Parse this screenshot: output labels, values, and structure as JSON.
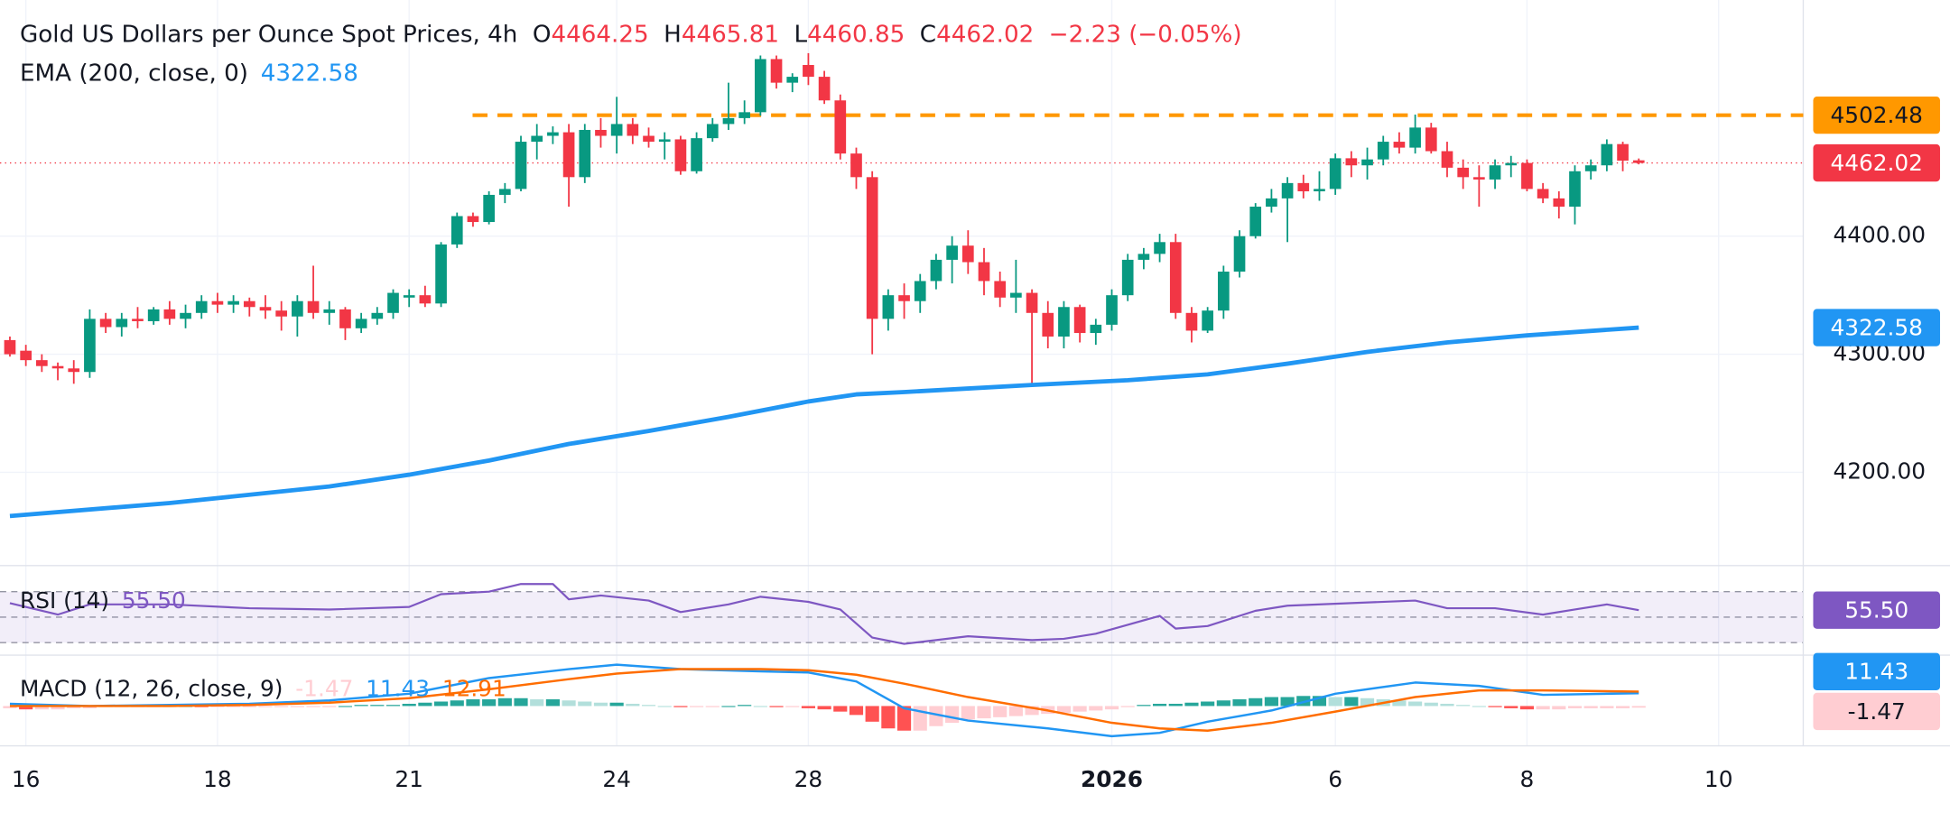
{
  "chart_data": {
    "type": "candlestick",
    "title": "Gold US Dollars per Ounce Spot Prices, 4h",
    "ohlc_letters": [
      "O",
      "H",
      "L",
      "C"
    ],
    "change": {
      "value": -2.23,
      "label": "−2.23"
    },
    "change_pct": {
      "value": -0.05,
      "label": "(−0.05%)"
    },
    "up_color": "#089981",
    "down_color": "#f23645",
    "xlim": [
      -0.62,
      112.3
    ],
    "xticks": [
      {
        "value": 1,
        "label": "16"
      },
      {
        "value": 13,
        "label": "18"
      },
      {
        "value": 25,
        "label": "21"
      },
      {
        "value": 38,
        "label": "24"
      },
      {
        "value": 50,
        "label": "28"
      },
      {
        "value": 69,
        "label": "2026"
      },
      {
        "value": 83,
        "label": "6"
      },
      {
        "value": 95,
        "label": "8"
      },
      {
        "value": 107,
        "label": "10"
      }
    ],
    "ylim": [
      4121,
      4600
    ],
    "yticks": [
      {
        "value": 4200,
        "label": "4200.00"
      },
      {
        "value": 4300,
        "label": "4300.00"
      },
      {
        "value": 4400,
        "label": "4400.00"
      }
    ],
    "grid": true,
    "resistance": {
      "level": 4502.48,
      "color": "#ff9800"
    },
    "ohlc": [
      [
        4312,
        4315,
        4298,
        4300
      ],
      [
        4303,
        4308,
        4290,
        4295
      ],
      [
        4295,
        4300,
        4285,
        4290
      ],
      [
        4290,
        4293,
        4278,
        4288
      ],
      [
        4288,
        4295,
        4275,
        4285
      ],
      [
        4285,
        4338,
        4280,
        4330
      ],
      [
        4330,
        4335,
        4318,
        4323
      ],
      [
        4323,
        4335,
        4315,
        4330
      ],
      [
        4330,
        4340,
        4322,
        4328
      ],
      [
        4328,
        4340,
        4325,
        4338
      ],
      [
        4338,
        4345,
        4325,
        4330
      ],
      [
        4330,
        4342,
        4322,
        4335
      ],
      [
        4335,
        4350,
        4330,
        4345
      ],
      [
        4345,
        4352,
        4335,
        4342
      ],
      [
        4342,
        4350,
        4335,
        4345
      ],
      [
        4345,
        4348,
        4332,
        4340
      ],
      [
        4340,
        4350,
        4330,
        4337
      ],
      [
        4337,
        4345,
        4320,
        4332
      ],
      [
        4332,
        4350,
        4315,
        4345
      ],
      [
        4345,
        4375,
        4330,
        4335
      ],
      [
        4335,
        4345,
        4325,
        4338
      ],
      [
        4338,
        4340,
        4312,
        4322
      ],
      [
        4322,
        4335,
        4318,
        4330
      ],
      [
        4330,
        4340,
        4325,
        4335
      ],
      [
        4335,
        4355,
        4330,
        4352
      ],
      [
        4348,
        4355,
        4340,
        4350
      ],
      [
        4350,
        4358,
        4340,
        4343
      ],
      [
        4343,
        4395,
        4340,
        4393
      ],
      [
        4393,
        4420,
        4390,
        4417
      ],
      [
        4417,
        4420,
        4408,
        4412
      ],
      [
        4412,
        4438,
        4410,
        4435
      ],
      [
        4435,
        4445,
        4428,
        4440
      ],
      [
        4440,
        4485,
        4438,
        4480
      ],
      [
        4480,
        4495,
        4465,
        4485
      ],
      [
        4485,
        4493,
        4478,
        4488
      ],
      [
        4488,
        4495,
        4425,
        4450
      ],
      [
        4450,
        4495,
        4445,
        4490
      ],
      [
        4490,
        4500,
        4475,
        4485
      ],
      [
        4485,
        4518,
        4470,
        4495
      ],
      [
        4495,
        4500,
        4478,
        4485
      ],
      [
        4485,
        4492,
        4475,
        4480
      ],
      [
        4480,
        4488,
        4465,
        4482
      ],
      [
        4482,
        4485,
        4452,
        4455
      ],
      [
        4455,
        4488,
        4453,
        4483
      ],
      [
        4483,
        4500,
        4480,
        4495
      ],
      [
        4495,
        4530,
        4490,
        4500
      ],
      [
        4500,
        4515,
        4495,
        4505
      ],
      [
        4505,
        4553,
        4502,
        4550
      ],
      [
        4550,
        4553,
        4525,
        4530
      ],
      [
        4530,
        4538,
        4522,
        4535
      ],
      [
        4545,
        4555,
        4528,
        4535
      ],
      [
        4535,
        4540,
        4512,
        4515
      ],
      [
        4515,
        4520,
        4465,
        4470
      ],
      [
        4470,
        4475,
        4440,
        4450
      ],
      [
        4450,
        4455,
        4300,
        4330
      ],
      [
        4330,
        4355,
        4320,
        4350
      ],
      [
        4350,
        4360,
        4330,
        4345
      ],
      [
        4345,
        4368,
        4335,
        4362
      ],
      [
        4362,
        4385,
        4355,
        4380
      ],
      [
        4380,
        4400,
        4360,
        4392
      ],
      [
        4392,
        4405,
        4368,
        4378
      ],
      [
        4378,
        4390,
        4350,
        4362
      ],
      [
        4362,
        4370,
        4340,
        4348
      ],
      [
        4348,
        4380,
        4335,
        4352
      ],
      [
        4352,
        4355,
        4275,
        4335
      ],
      [
        4335,
        4345,
        4305,
        4315
      ],
      [
        4315,
        4345,
        4305,
        4340
      ],
      [
        4340,
        4342,
        4310,
        4318
      ],
      [
        4318,
        4330,
        4308,
        4325
      ],
      [
        4325,
        4355,
        4320,
        4350
      ],
      [
        4350,
        4385,
        4345,
        4380
      ],
      [
        4380,
        4390,
        4372,
        4385
      ],
      [
        4385,
        4402,
        4378,
        4395
      ],
      [
        4395,
        4402,
        4330,
        4335
      ],
      [
        4335,
        4340,
        4310,
        4320
      ],
      [
        4320,
        4340,
        4318,
        4337
      ],
      [
        4337,
        4375,
        4330,
        4370
      ],
      [
        4370,
        4405,
        4365,
        4400
      ],
      [
        4400,
        4428,
        4398,
        4425
      ],
      [
        4425,
        4440,
        4420,
        4432
      ],
      [
        4432,
        4450,
        4395,
        4445
      ],
      [
        4445,
        4452,
        4432,
        4438
      ],
      [
        4438,
        4455,
        4430,
        4440
      ],
      [
        4440,
        4470,
        4435,
        4466
      ],
      [
        4466,
        4472,
        4450,
        4460
      ],
      [
        4460,
        4475,
        4448,
        4465
      ],
      [
        4465,
        4485,
        4460,
        4480
      ],
      [
        4480,
        4488,
        4470,
        4475
      ],
      [
        4475,
        4503,
        4470,
        4492
      ],
      [
        4492,
        4496,
        4470,
        4472
      ],
      [
        4472,
        4480,
        4450,
        4458
      ],
      [
        4458,
        4465,
        4440,
        4450
      ],
      [
        4450,
        4460,
        4425,
        4448
      ],
      [
        4448,
        4465,
        4440,
        4460
      ],
      [
        4460,
        4468,
        4450,
        4462
      ],
      [
        4462,
        4465,
        4438,
        4440
      ],
      [
        4440,
        4445,
        4428,
        4432
      ],
      [
        4432,
        4438,
        4415,
        4425
      ],
      [
        4425,
        4460,
        4410,
        4455
      ],
      [
        4455,
        4465,
        4448,
        4460
      ],
      [
        4460,
        4482,
        4455,
        4478
      ],
      [
        4478,
        4480,
        4455,
        4464
      ],
      [
        4464.25,
        4465.81,
        4460.85,
        4462.02
      ]
    ],
    "ema": {
      "name": "EMA (200, close, 0)",
      "color": "#2196f3",
      "x": [
        0,
        10,
        20,
        25,
        30,
        35,
        40,
        45,
        50,
        53,
        56,
        60,
        64,
        70,
        75,
        80,
        85,
        90,
        95,
        102
      ],
      "values": [
        4163,
        4174,
        4188,
        4198,
        4210,
        4224,
        4235,
        4247,
        4260,
        4266,
        4268,
        4271,
        4274,
        4278,
        4283,
        4292,
        4302,
        4310,
        4316,
        4322.58
      ]
    },
    "rsi": {
      "name": "RSI (14)",
      "color": "#7e57c2",
      "ylim": [
        20.2,
        88.5
      ],
      "levels": [
        70,
        50,
        30
      ],
      "readout": {
        "value": 55.5,
        "label": "55.50"
      },
      "x": [
        0,
        3,
        5,
        10,
        15,
        20,
        25,
        27,
        30,
        32,
        34,
        35,
        37,
        40,
        42,
        45,
        47,
        50,
        52,
        54,
        56,
        60,
        64,
        66,
        68,
        70,
        72,
        73,
        75,
        78,
        80,
        84,
        88,
        90,
        93,
        96,
        98,
        100,
        102
      ],
      "values": [
        61,
        52,
        60,
        60,
        57,
        56,
        58,
        68,
        70,
        76,
        76,
        64,
        67,
        63,
        54,
        60,
        66,
        62,
        56,
        34,
        29,
        35,
        32,
        33,
        37,
        44,
        51,
        41,
        43,
        55,
        59,
        61,
        63,
        57,
        57,
        52,
        56,
        60,
        55.5
      ]
    },
    "macd": {
      "name": "MACD (12, 26, close, 9)",
      "ylim": [
        -35.6,
        42.2
      ],
      "hist_colors": [
        "#26a69a",
        "#b2dfdb",
        "#ff5252",
        "#ffcdd2"
      ],
      "histogram": [
        -2,
        -3,
        -3,
        -3,
        -2,
        -2,
        -1,
        -1,
        -1,
        -1,
        0,
        0,
        -1,
        -1,
        -1,
        -1,
        -1,
        -1,
        -1,
        -1,
        -1,
        0,
        1,
        1,
        1,
        2,
        3,
        4,
        5,
        6,
        6,
        7,
        7,
        6,
        6,
        5,
        4,
        3,
        3,
        2,
        1,
        0,
        -1,
        -1,
        -1,
        0,
        1,
        0,
        -1,
        -1,
        -2,
        -3,
        -5,
        -8,
        -14,
        -20,
        -22,
        -22,
        -18,
        -15,
        -12,
        -11,
        -10,
        -9,
        -8,
        -7,
        -6,
        -5,
        -4,
        -3,
        -1,
        1,
        2,
        2,
        3,
        4,
        5,
        6,
        7,
        8,
        8,
        9,
        9,
        8,
        8,
        7,
        6,
        5,
        4,
        3,
        2,
        1,
        0,
        -1,
        -2,
        -3,
        -3,
        -3,
        -2,
        -2,
        -2,
        -2,
        -1.47
      ],
      "x": [
        0,
        5,
        10,
        15,
        20,
        25,
        30,
        35,
        38,
        42,
        47,
        50,
        53,
        56,
        60,
        65,
        69,
        72,
        75,
        79,
        83,
        88,
        92,
        96,
        102
      ],
      "series": [
        {
          "name": "MACD",
          "color": "#2196f3",
          "values": [
            2,
            0,
            1,
            2,
            5,
            11,
            25,
            33,
            37,
            33,
            31,
            30,
            22,
            -2,
            -13,
            -20,
            -27,
            -24,
            -14,
            -4,
            11,
            21,
            18,
            10,
            11.43
          ]
        },
        {
          "name": "Signal",
          "color": "#ff6d00",
          "values": [
            0,
            0,
            0,
            1,
            3,
            7,
            15,
            24,
            29,
            33,
            33,
            32,
            28,
            20,
            8,
            -4,
            -15,
            -20,
            -22,
            -15,
            -5,
            8,
            14,
            14,
            12.91
          ]
        }
      ]
    }
  }
}
